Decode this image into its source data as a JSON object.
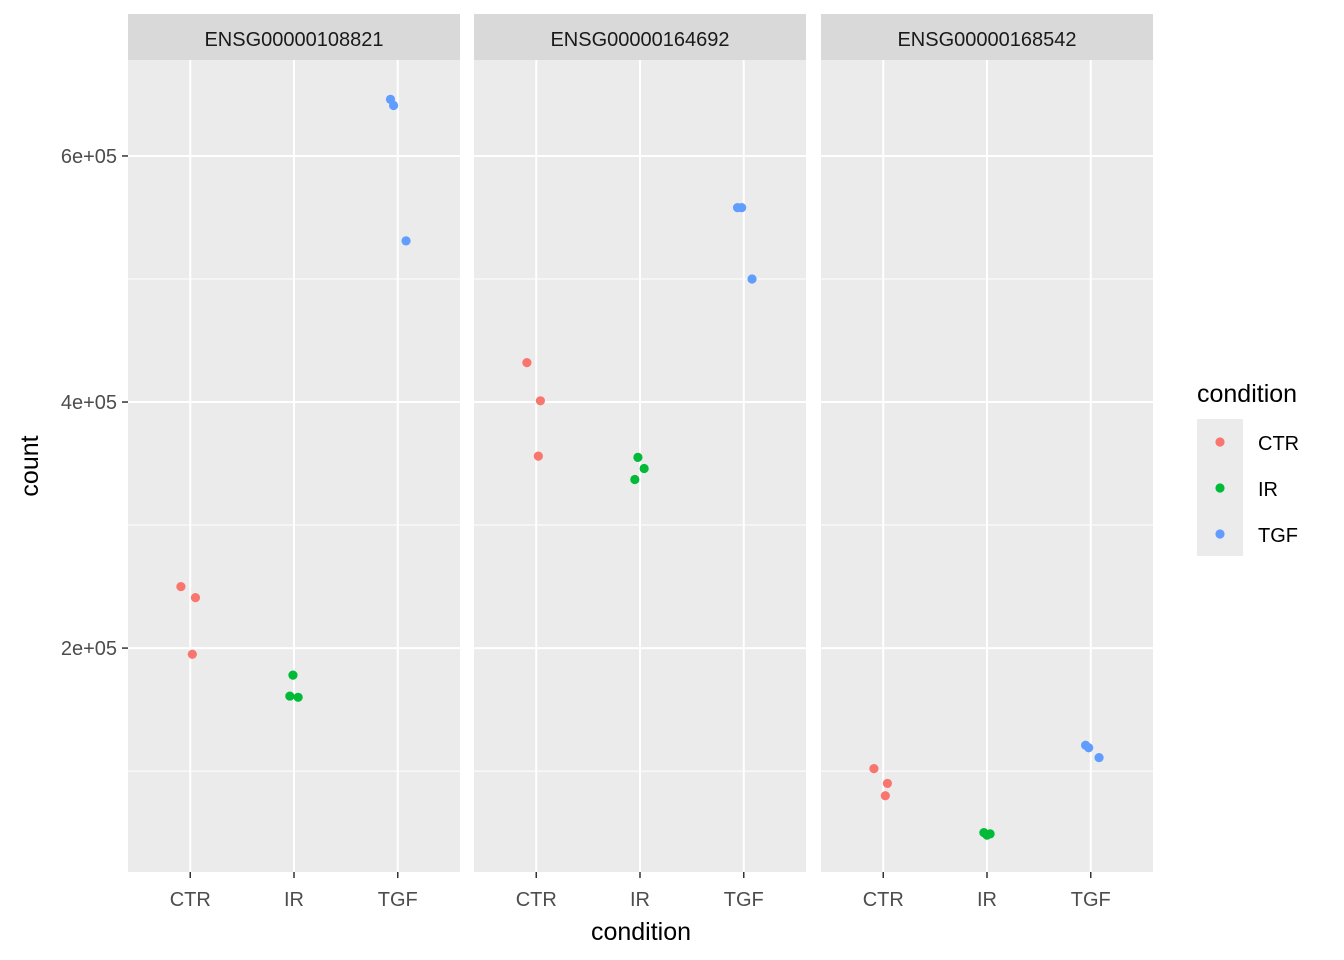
{
  "chart_data": {
    "type": "scatter",
    "xlabel": "condition",
    "ylabel": "count",
    "categories": [
      "CTR",
      "IR",
      "TGF"
    ],
    "y_ticks": [
      {
        "value": 200000,
        "label": "2e+05"
      },
      {
        "value": 400000,
        "label": "4e+05"
      },
      {
        "value": 600000,
        "label": "6e+05"
      }
    ],
    "ylim": [
      18000,
      678000
    ],
    "grid": true,
    "facets": [
      {
        "label": "ENSG00000108821",
        "points": [
          {
            "condition": "CTR",
            "jitter": -0.09,
            "count": 250000
          },
          {
            "condition": "CTR",
            "jitter": 0.05,
            "count": 241000
          },
          {
            "condition": "CTR",
            "jitter": 0.02,
            "count": 195000
          },
          {
            "condition": "IR",
            "jitter": -0.01,
            "count": 178000
          },
          {
            "condition": "IR",
            "jitter": -0.04,
            "count": 161000
          },
          {
            "condition": "IR",
            "jitter": 0.04,
            "count": 160000
          },
          {
            "condition": "TGF",
            "jitter": -0.07,
            "count": 646000
          },
          {
            "condition": "TGF",
            "jitter": -0.04,
            "count": 641000
          },
          {
            "condition": "TGF",
            "jitter": 0.08,
            "count": 531000
          }
        ]
      },
      {
        "label": "ENSG00000164692",
        "points": [
          {
            "condition": "CTR",
            "jitter": -0.09,
            "count": 432000
          },
          {
            "condition": "CTR",
            "jitter": 0.04,
            "count": 401000
          },
          {
            "condition": "CTR",
            "jitter": 0.02,
            "count": 356000
          },
          {
            "condition": "IR",
            "jitter": -0.02,
            "count": 355000
          },
          {
            "condition": "IR",
            "jitter": 0.04,
            "count": 346000
          },
          {
            "condition": "IR",
            "jitter": -0.05,
            "count": 337000
          },
          {
            "condition": "TGF",
            "jitter": -0.06,
            "count": 558000
          },
          {
            "condition": "TGF",
            "jitter": -0.02,
            "count": 558000
          },
          {
            "condition": "TGF",
            "jitter": 0.08,
            "count": 500000
          }
        ]
      },
      {
        "label": "ENSG00000168542",
        "points": [
          {
            "condition": "CTR",
            "jitter": -0.09,
            "count": 102000
          },
          {
            "condition": "CTR",
            "jitter": 0.04,
            "count": 90000
          },
          {
            "condition": "CTR",
            "jitter": 0.02,
            "count": 80000
          },
          {
            "condition": "IR",
            "jitter": -0.03,
            "count": 50000
          },
          {
            "condition": "IR",
            "jitter": 0.03,
            "count": 49000
          },
          {
            "condition": "IR",
            "jitter": 0.0,
            "count": 48000
          },
          {
            "condition": "TGF",
            "jitter": -0.05,
            "count": 121000
          },
          {
            "condition": "TGF",
            "jitter": -0.02,
            "count": 119000
          },
          {
            "condition": "TGF",
            "jitter": 0.08,
            "count": 111000
          }
        ]
      }
    ],
    "legend": {
      "title": "condition",
      "placement": "right",
      "entries": [
        {
          "label": "CTR",
          "color": "#F8766D"
        },
        {
          "label": "IR",
          "color": "#00BA38"
        },
        {
          "label": "TGF",
          "color": "#619CFF"
        }
      ]
    },
    "colors": {
      "panel_background": "#EBEBEB",
      "strip_background": "#D9D9D9",
      "grid": "#FFFFFF"
    }
  }
}
